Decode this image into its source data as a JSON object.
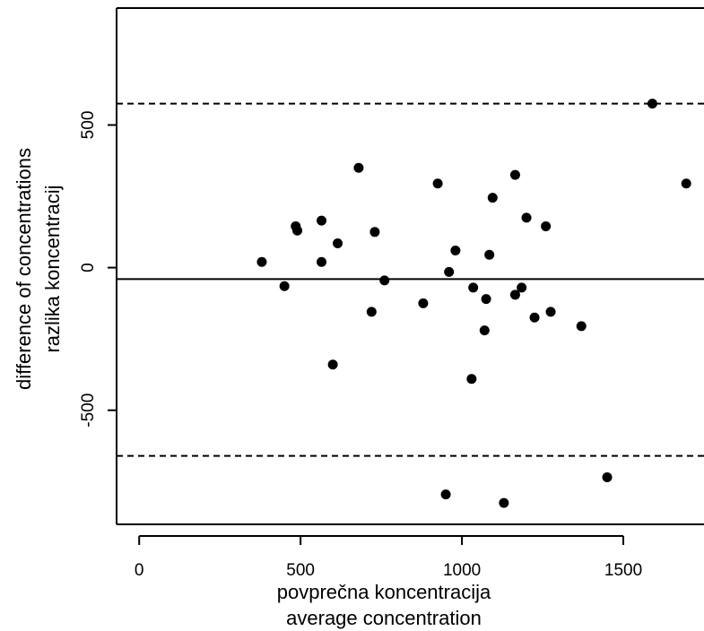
{
  "chart_data": {
    "type": "scatter",
    "title": "",
    "xlabel": "povprečna koncentracija",
    "xlabel2": "average concentration",
    "ylabel": "difference of concentrations",
    "ylabel2": "razlika koncentracij",
    "xlim": [
      -70,
      1750
    ],
    "ylim": [
      -900,
      910
    ],
    "xticks": [
      0,
      500,
      1000,
      1500
    ],
    "xtick_labels": [
      "0",
      "500",
      "1000",
      "1500"
    ],
    "yticks": [
      -500,
      0,
      500
    ],
    "ytick_labels": [
      "-500",
      "0",
      "500"
    ],
    "grid": false,
    "legend": "none",
    "reference_lines": [
      {
        "kind": "mean",
        "style": "solid",
        "y": -40
      },
      {
        "kind": "upper-limit",
        "style": "dashed",
        "y": 575
      },
      {
        "kind": "lower-limit",
        "style": "dashed",
        "y": -660
      }
    ],
    "points": [
      {
        "x": 380,
        "y": 20
      },
      {
        "x": 450,
        "y": -65
      },
      {
        "x": 485,
        "y": 145
      },
      {
        "x": 490,
        "y": 130
      },
      {
        "x": 565,
        "y": 165
      },
      {
        "x": 565,
        "y": 20
      },
      {
        "x": 600,
        "y": -340
      },
      {
        "x": 615,
        "y": 85
      },
      {
        "x": 680,
        "y": 350
      },
      {
        "x": 720,
        "y": -155
      },
      {
        "x": 730,
        "y": 125
      },
      {
        "x": 760,
        "y": -45
      },
      {
        "x": 880,
        "y": -125
      },
      {
        "x": 925,
        "y": 295
      },
      {
        "x": 950,
        "y": -795
      },
      {
        "x": 960,
        "y": -15
      },
      {
        "x": 980,
        "y": 60
      },
      {
        "x": 1030,
        "y": -390
      },
      {
        "x": 1035,
        "y": -70
      },
      {
        "x": 1070,
        "y": -220
      },
      {
        "x": 1075,
        "y": -110
      },
      {
        "x": 1085,
        "y": 45
      },
      {
        "x": 1095,
        "y": 245
      },
      {
        "x": 1130,
        "y": -825
      },
      {
        "x": 1165,
        "y": 325
      },
      {
        "x": 1165,
        "y": -95
      },
      {
        "x": 1185,
        "y": -70
      },
      {
        "x": 1200,
        "y": 175
      },
      {
        "x": 1225,
        "y": -175
      },
      {
        "x": 1260,
        "y": 145
      },
      {
        "x": 1275,
        "y": -155
      },
      {
        "x": 1370,
        "y": -205
      },
      {
        "x": 1450,
        "y": -735
      },
      {
        "x": 1590,
        "y": 575
      },
      {
        "x": 1695,
        "y": 295
      }
    ]
  }
}
